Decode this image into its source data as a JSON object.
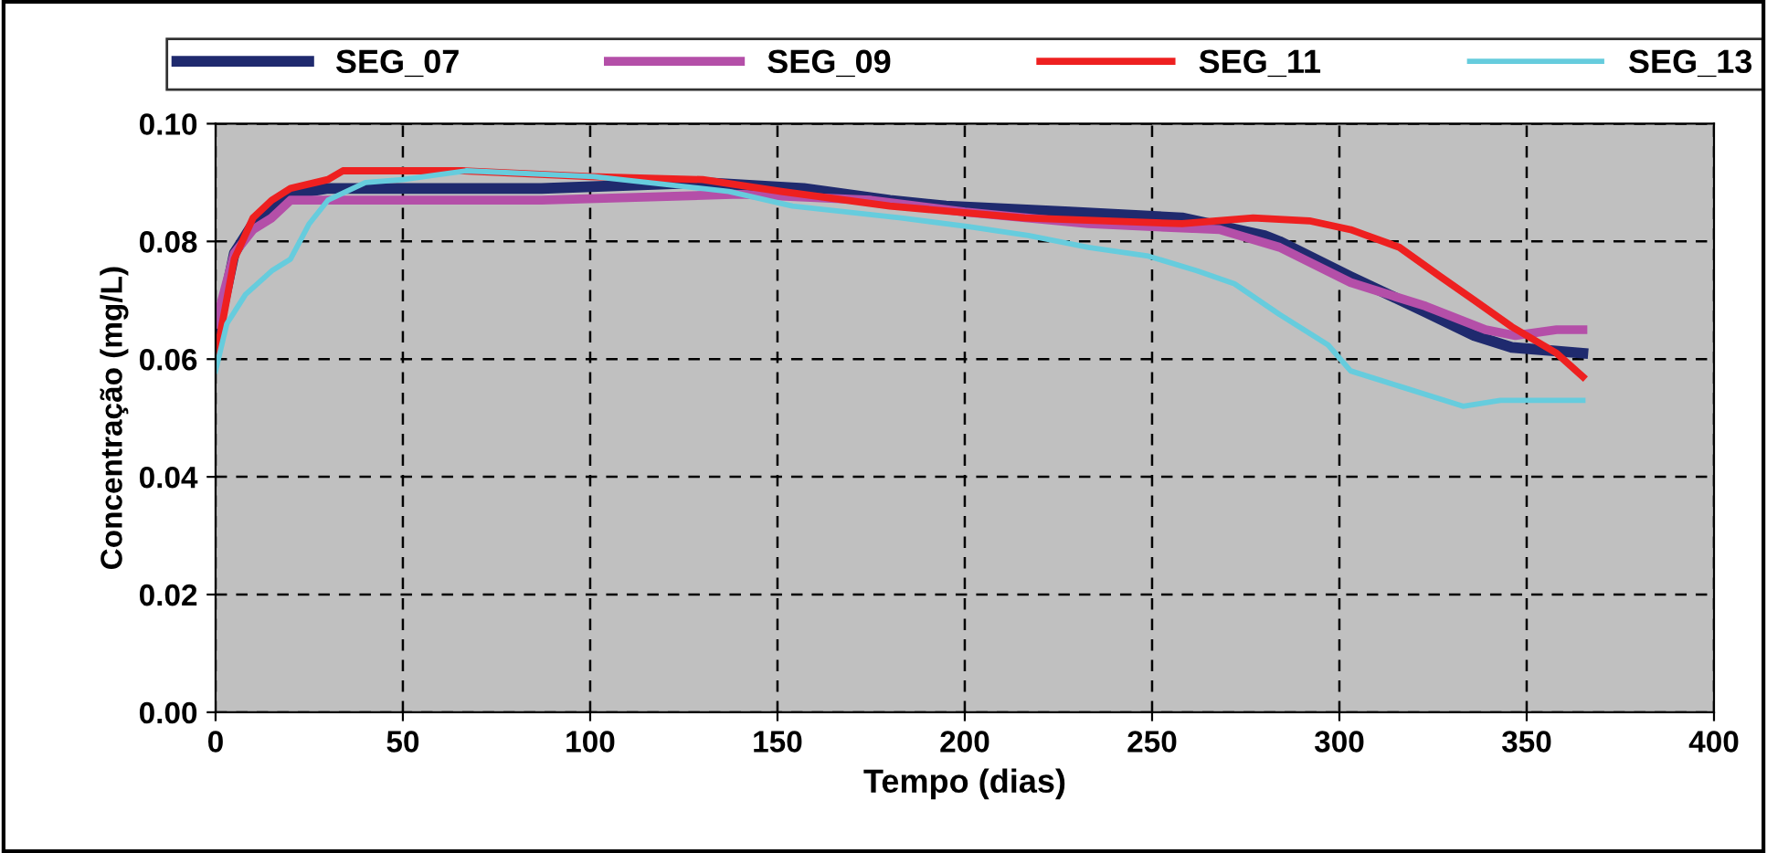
{
  "chart_data": {
    "type": "line",
    "xlabel": "Tempo (dias)",
    "ylabel": "Concentração (mg/L)",
    "xlim": [
      0,
      400
    ],
    "xticks": [
      0,
      50,
      100,
      150,
      200,
      250,
      300,
      350,
      400
    ],
    "ylim": [
      0,
      0.1
    ],
    "yticks": [
      {
        "value": 0,
        "label": "0.00"
      },
      {
        "value": 0.02,
        "label": "0.02"
      },
      {
        "value": 0.04,
        "label": "0.04"
      },
      {
        "value": 0.06,
        "label": "0.06"
      },
      {
        "value": 0.08,
        "label": "0.08"
      },
      {
        "value": 0.1,
        "label": "0.10"
      }
    ],
    "grid": true,
    "legend": "top",
    "marker": "none",
    "line_style": "solid",
    "series": [
      {
        "name": "SEG_07",
        "color": "#1f2a6e",
        "x": [
          0,
          5,
          10,
          15,
          20,
          30,
          87,
          130,
          157,
          180,
          195,
          228,
          258,
          280,
          284,
          303,
          323,
          336,
          346,
          365
        ],
        "values": [
          0.063,
          0.078,
          0.083,
          0.086,
          0.088,
          0.089,
          0.089,
          0.09,
          0.089,
          0.087,
          0.086,
          0.085,
          0.084,
          0.081,
          0.08,
          0.074,
          0.068,
          0.064,
          0.062,
          0.061
        ]
      },
      {
        "name": "SEG_09",
        "color": "#b44fa8",
        "x": [
          0,
          5,
          10,
          15,
          20,
          87,
          140,
          175,
          200,
          233,
          268,
          284,
          303,
          323,
          339,
          347,
          358,
          365
        ],
        "values": [
          0.066,
          0.078,
          0.082,
          0.084,
          0.087,
          0.087,
          0.088,
          0.087,
          0.085,
          0.083,
          0.082,
          0.079,
          0.073,
          0.069,
          0.065,
          0.064,
          0.065,
          0.065
        ]
      },
      {
        "name": "SEG_11",
        "color": "#ee2020",
        "x": [
          0,
          5,
          10,
          15,
          20,
          30,
          34,
          66,
          100,
          130,
          151,
          180,
          216,
          258,
          277,
          292,
          303,
          316,
          327,
          336,
          346,
          358,
          365
        ],
        "values": [
          0.06,
          0.077,
          0.084,
          0.087,
          0.089,
          0.0905,
          0.092,
          0.092,
          0.091,
          0.0905,
          0.0885,
          0.086,
          0.084,
          0.083,
          0.084,
          0.0835,
          0.082,
          0.079,
          0.074,
          0.07,
          0.0655,
          0.061,
          0.057
        ]
      },
      {
        "name": "SEG_13",
        "color": "#66ccdd",
        "x": [
          0,
          3,
          8,
          15,
          20,
          25,
          30,
          40,
          50,
          67,
          101,
          137,
          154,
          183,
          201,
          217,
          233,
          249,
          262,
          272,
          284,
          297,
          303,
          316,
          333,
          343,
          365
        ],
        "values": [
          0.058,
          0.066,
          0.071,
          0.075,
          0.077,
          0.083,
          0.087,
          0.09,
          0.0905,
          0.092,
          0.091,
          0.0885,
          0.086,
          0.084,
          0.0825,
          0.081,
          0.079,
          0.0775,
          0.075,
          0.0728,
          0.0676,
          0.0624,
          0.058,
          0.0554,
          0.052,
          0.053,
          0.053
        ]
      }
    ]
  }
}
